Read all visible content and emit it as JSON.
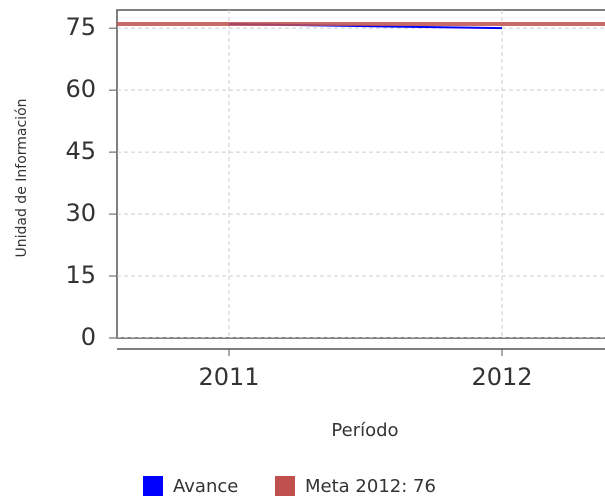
{
  "chart_data": {
    "type": "line",
    "x_label": "Período",
    "y_label": "Unidad de Información",
    "categories": [
      "2011",
      "2012"
    ],
    "series": [
      {
        "name": "Avance",
        "color": "#0000ff",
        "values": [
          76,
          75
        ]
      }
    ],
    "target": {
      "name": "Meta 2012: 76",
      "value": 76,
      "color": "#c0504d"
    },
    "ylim": [
      0,
      79.4
    ],
    "yticks": [
      0,
      15,
      30,
      45,
      60,
      75
    ],
    "grid": true
  }
}
